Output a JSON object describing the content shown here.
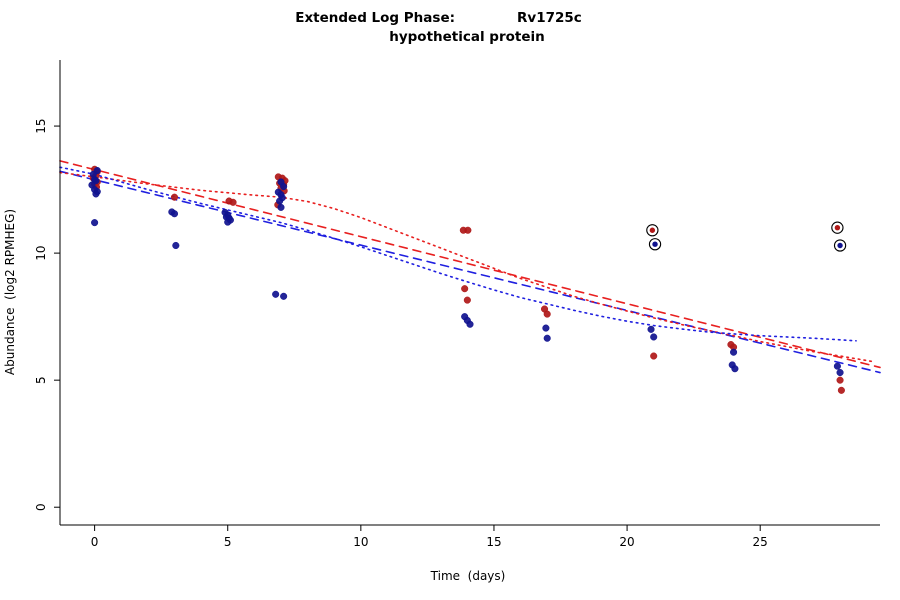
{
  "title": {
    "left": "Extended Log Phase:",
    "right": "Rv1725c",
    "sub": "hypothetical protein"
  },
  "chart_data": {
    "type": "scatter",
    "title": "Extended Log Phase:     Rv1725c",
    "subtitle": "hypothetical protein",
    "xlabel": "Time  (days)",
    "ylabel": "Abundance  (log2 RPMHEG)",
    "xlim": [
      -1.3,
      29.5
    ],
    "ylim": [
      -0.7,
      17.6
    ],
    "xticks": [
      0,
      5,
      10,
      15,
      20,
      25
    ],
    "yticks": [
      0,
      5,
      10,
      15
    ],
    "grid": false,
    "legend": "none",
    "colors": {
      "red_points": "#b01818",
      "blue_points": "#10128f",
      "red_line": "#e82020",
      "blue_line": "#2020e0",
      "flag_ring": "#000000"
    },
    "series": [
      {
        "name": "red-points",
        "color": "#b01818",
        "points": [
          [
            0,
            13.3
          ],
          [
            0.1,
            13.2
          ],
          [
            0.05,
            13.05
          ],
          [
            -0.05,
            12.95
          ],
          [
            0.1,
            12.8
          ],
          [
            0,
            12.72
          ],
          [
            0.07,
            12.6
          ],
          [
            3,
            12.2
          ],
          [
            5.05,
            12.05
          ],
          [
            5.2,
            12.0
          ],
          [
            6.9,
            13.0
          ],
          [
            7.05,
            12.95
          ],
          [
            7.15,
            12.85
          ],
          [
            6.95,
            12.75
          ],
          [
            7.1,
            12.7
          ],
          [
            7.0,
            12.55
          ],
          [
            7.12,
            12.45
          ],
          [
            6.88,
            11.9
          ],
          [
            13.85,
            10.9
          ],
          [
            14.02,
            10.9
          ],
          [
            13.9,
            8.6
          ],
          [
            14.0,
            8.15
          ],
          [
            16.9,
            7.8
          ],
          [
            17.0,
            7.6
          ],
          [
            21.0,
            5.95
          ],
          [
            23.9,
            6.4
          ],
          [
            24.0,
            6.3
          ],
          [
            28.0,
            5.0
          ],
          [
            28.05,
            4.6
          ]
        ]
      },
      {
        "name": "blue-points",
        "color": "#10128f",
        "points": [
          [
            0.1,
            13.25
          ],
          [
            -0.05,
            13.1
          ],
          [
            0,
            12.9
          ],
          [
            0.05,
            12.85
          ],
          [
            -0.1,
            12.68
          ],
          [
            0,
            12.5
          ],
          [
            0.1,
            12.42
          ],
          [
            0.05,
            12.33
          ],
          [
            0,
            11.2
          ],
          [
            2.9,
            11.62
          ],
          [
            3.0,
            11.55
          ],
          [
            3.05,
            10.3
          ],
          [
            4.9,
            11.6
          ],
          [
            5.0,
            11.5
          ],
          [
            4.95,
            11.42
          ],
          [
            5.05,
            11.38
          ],
          [
            5.1,
            11.3
          ],
          [
            5.0,
            11.22
          ],
          [
            7.0,
            12.8
          ],
          [
            7.1,
            12.62
          ],
          [
            6.9,
            12.4
          ],
          [
            7.0,
            12.3
          ],
          [
            7.05,
            12.18
          ],
          [
            6.95,
            12.05
          ],
          [
            7.0,
            11.8
          ],
          [
            6.8,
            8.38
          ],
          [
            7.1,
            8.3
          ],
          [
            13.9,
            7.5
          ],
          [
            14.0,
            7.35
          ],
          [
            14.1,
            7.2
          ],
          [
            16.95,
            7.05
          ],
          [
            17.0,
            6.65
          ],
          [
            20.9,
            7.0
          ],
          [
            21.0,
            6.7
          ],
          [
            24.0,
            6.1
          ],
          [
            23.95,
            5.6
          ],
          [
            24.05,
            5.45
          ],
          [
            27.9,
            5.55
          ],
          [
            28.0,
            5.3
          ]
        ]
      }
    ],
    "flagged_points": [
      {
        "name": "flagged-red",
        "color": "#b01818",
        "points": [
          [
            20.95,
            10.9
          ],
          [
            27.9,
            11.0
          ]
        ]
      },
      {
        "name": "flagged-blue",
        "color": "#10128f",
        "points": [
          [
            21.05,
            10.35
          ],
          [
            28.0,
            10.3
          ]
        ]
      }
    ],
    "lines": [
      {
        "name": "red-dashed-fit",
        "style": "dashed",
        "color": "#e82020",
        "points": [
          [
            -1.3,
            13.63
          ],
          [
            29.5,
            5.5
          ]
        ]
      },
      {
        "name": "blue-dashed-fit",
        "style": "dashed",
        "color": "#2020e0",
        "points": [
          [
            -1.3,
            13.22
          ],
          [
            29.5,
            5.3
          ]
        ]
      },
      {
        "name": "red-dotted-smooth",
        "style": "dotted",
        "color": "#e82020",
        "points": [
          [
            -1.3,
            13.17
          ],
          [
            0,
            13.0
          ],
          [
            2,
            12.72
          ],
          [
            4,
            12.47
          ],
          [
            6,
            12.28
          ],
          [
            7,
            12.2
          ],
          [
            8,
            12.03
          ],
          [
            9,
            11.75
          ],
          [
            10,
            11.4
          ],
          [
            11,
            11.0
          ],
          [
            12,
            10.6
          ],
          [
            13,
            10.2
          ],
          [
            14,
            9.8
          ],
          [
            15,
            9.4
          ],
          [
            16,
            9.0
          ],
          [
            17,
            8.65
          ],
          [
            18,
            8.3
          ],
          [
            19,
            8.0
          ],
          [
            20,
            7.72
          ],
          [
            21,
            7.45
          ],
          [
            22,
            7.2
          ],
          [
            23,
            6.97
          ],
          [
            24,
            6.75
          ],
          [
            25,
            6.52
          ],
          [
            26,
            6.32
          ],
          [
            27,
            6.12
          ],
          [
            28,
            5.95
          ],
          [
            29.3,
            5.72
          ]
        ]
      },
      {
        "name": "blue-dotted-smooth",
        "style": "dotted",
        "color": "#2020e0",
        "points": [
          [
            -1.3,
            13.38
          ],
          [
            0,
            13.1
          ],
          [
            1,
            12.8
          ],
          [
            2,
            12.5
          ],
          [
            3,
            12.22
          ],
          [
            4,
            11.95
          ],
          [
            5,
            11.7
          ],
          [
            6,
            11.45
          ],
          [
            7,
            11.2
          ],
          [
            8,
            10.9
          ],
          [
            9,
            10.58
          ],
          [
            10,
            10.25
          ],
          [
            11,
            9.9
          ],
          [
            12,
            9.55
          ],
          [
            13,
            9.2
          ],
          [
            14,
            8.87
          ],
          [
            15,
            8.55
          ],
          [
            16,
            8.25
          ],
          [
            17,
            8.0
          ],
          [
            18,
            7.75
          ],
          [
            19,
            7.52
          ],
          [
            20,
            7.32
          ],
          [
            21,
            7.15
          ],
          [
            22,
            7.02
          ],
          [
            23,
            6.9
          ],
          [
            24,
            6.82
          ],
          [
            25,
            6.75
          ],
          [
            26,
            6.7
          ],
          [
            27,
            6.65
          ],
          [
            28.6,
            6.55
          ]
        ]
      }
    ]
  }
}
